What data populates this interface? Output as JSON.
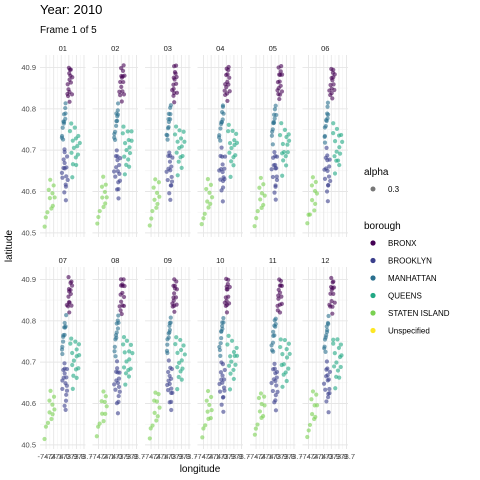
{
  "chart_data": {
    "type": "scatter",
    "title": "Year: 2010",
    "subtitle": "Frame 1 of 5",
    "xlabel": "longitude",
    "ylabel": "latitude",
    "xlim": [
      -74.28,
      -73.68
    ],
    "ylim": [
      40.49,
      40.93
    ],
    "y_ticks": [
      40.5,
      40.6,
      40.7,
      40.8,
      40.9
    ],
    "y_tick_labels": [
      "40.5",
      "40.6",
      "40.7",
      "40.8",
      "40.9"
    ],
    "x_ticks": [
      -74.2,
      -74.1,
      -74.0,
      -73.9,
      -73.8,
      -73.7
    ],
    "x_tick_labels": [
      "-74.2",
      "-74.1",
      "-74.0",
      "-73.9",
      "-73.8",
      "-73.7"
    ],
    "facets": [
      "01",
      "02",
      "03",
      "04",
      "05",
      "06",
      "07",
      "08",
      "09",
      "10",
      "11",
      "12"
    ],
    "point_alpha": 0.6,
    "grid": true,
    "legend_position": "right",
    "legends": [
      {
        "title": "alpha",
        "entries": [
          {
            "label": "0.3",
            "color": "#555555"
          }
        ]
      },
      {
        "title": "borough",
        "entries": [
          {
            "label": "BRONX",
            "color": "#440154"
          },
          {
            "label": "BROOKLYN",
            "color": "#3b3f8c"
          },
          {
            "label": "MANHATTAN",
            "color": "#2a6f8e"
          },
          {
            "label": "QUEENS",
            "color": "#22a884"
          },
          {
            "label": "STATEN ISLAND",
            "color": "#7ad151"
          },
          {
            "label": "Unspecified",
            "color": "#fde725"
          }
        ]
      }
    ],
    "series": [
      {
        "name": "BRONX",
        "color": "#440154",
        "points": [
          [
            -73.91,
            40.83
          ],
          [
            -73.9,
            40.85
          ],
          [
            -73.89,
            40.87
          ],
          [
            -73.88,
            40.89
          ],
          [
            -73.9,
            40.9
          ],
          [
            -73.87,
            40.86
          ],
          [
            -73.86,
            40.84
          ],
          [
            -73.89,
            40.82
          ],
          [
            -73.92,
            40.84
          ],
          [
            -73.88,
            40.88
          ],
          [
            -73.87,
            40.9
          ],
          [
            -73.9,
            40.88
          ],
          [
            -73.91,
            40.86
          ],
          [
            -73.86,
            40.88
          ],
          [
            -73.89,
            40.84
          ]
        ]
      },
      {
        "name": "BROOKLYN",
        "color": "#3b3f8c",
        "points": [
          [
            -73.97,
            40.68
          ],
          [
            -73.95,
            40.65
          ],
          [
            -73.94,
            40.62
          ],
          [
            -73.96,
            40.6
          ],
          [
            -73.98,
            40.63
          ],
          [
            -73.93,
            40.66
          ],
          [
            -73.95,
            40.69
          ],
          [
            -73.92,
            40.68
          ],
          [
            -73.97,
            40.66
          ],
          [
            -73.94,
            40.58
          ],
          [
            -73.96,
            40.7
          ],
          [
            -73.93,
            40.64
          ],
          [
            -73.99,
            40.65
          ],
          [
            -73.95,
            40.67
          ],
          [
            -73.94,
            40.61
          ],
          [
            -73.92,
            40.63
          ]
        ]
      },
      {
        "name": "MANHATTAN",
        "color": "#2a6f8e",
        "points": [
          [
            -73.99,
            40.73
          ],
          [
            -73.98,
            40.75
          ],
          [
            -73.97,
            40.77
          ],
          [
            -73.96,
            40.79
          ],
          [
            -73.95,
            40.78
          ],
          [
            -73.94,
            40.81
          ],
          [
            -73.98,
            40.72
          ],
          [
            -73.97,
            40.76
          ],
          [
            -73.95,
            40.8
          ],
          [
            -73.99,
            40.74
          ],
          [
            -73.96,
            40.77
          ],
          [
            -73.94,
            40.79
          ]
        ]
      },
      {
        "name": "QUEENS",
        "color": "#22a884",
        "points": [
          [
            -73.85,
            40.72
          ],
          [
            -73.83,
            40.7
          ],
          [
            -73.8,
            40.73
          ],
          [
            -73.78,
            40.69
          ],
          [
            -73.88,
            40.74
          ],
          [
            -73.82,
            40.75
          ],
          [
            -73.79,
            40.71
          ],
          [
            -73.86,
            40.69
          ],
          [
            -73.76,
            40.72
          ],
          [
            -73.84,
            40.67
          ],
          [
            -73.81,
            40.68
          ],
          [
            -73.87,
            40.76
          ],
          [
            -73.8,
            40.66
          ],
          [
            -73.85,
            40.64
          ],
          [
            -73.77,
            40.74
          ]
        ]
      },
      {
        "name": "STATEN ISLAND",
        "color": "#7ad151",
        "points": [
          [
            -74.15,
            40.58
          ],
          [
            -74.12,
            40.6
          ],
          [
            -74.1,
            40.62
          ],
          [
            -74.18,
            40.55
          ],
          [
            -74.14,
            40.63
          ],
          [
            -74.2,
            40.54
          ],
          [
            -74.09,
            40.59
          ],
          [
            -74.16,
            40.61
          ],
          [
            -74.22,
            40.52
          ],
          [
            -74.11,
            40.57
          ],
          [
            -74.13,
            40.56
          ]
        ]
      }
    ]
  }
}
